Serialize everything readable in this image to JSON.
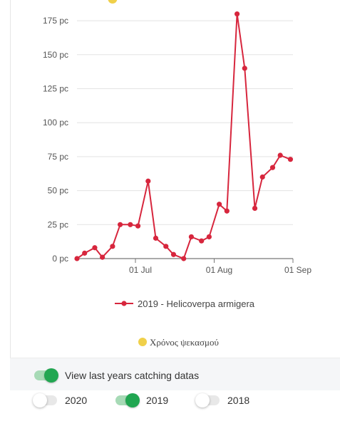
{
  "chart_data": {
    "type": "line",
    "title": "",
    "xlabel": "",
    "ylabel": "",
    "unit_suffix": " pc",
    "ylim": [
      0,
      185
    ],
    "yticks": [
      0,
      25,
      50,
      75,
      100,
      125,
      150,
      175
    ],
    "xlim": [
      "2019-06-08",
      "2019-09-01"
    ],
    "xticks": [
      {
        "date": "2019-07-01",
        "label": "01 Jul"
      },
      {
        "date": "2019-08-01",
        "label": "01 Aug"
      },
      {
        "date": "2019-09-01",
        "label": "01 Sep"
      }
    ],
    "grid": true,
    "series": [
      {
        "name": "2019 - Helicoverpa armigera",
        "color": "#d7263d",
        "points": [
          {
            "x": "2019-06-08",
            "y": 0
          },
          {
            "x": "2019-06-11",
            "y": 4
          },
          {
            "x": "2019-06-15",
            "y": 8
          },
          {
            "x": "2019-06-18",
            "y": 1
          },
          {
            "x": "2019-06-22",
            "y": 9
          },
          {
            "x": "2019-06-25",
            "y": 25
          },
          {
            "x": "2019-06-29",
            "y": 25
          },
          {
            "x": "2019-07-02",
            "y": 24
          },
          {
            "x": "2019-07-06",
            "y": 57
          },
          {
            "x": "2019-07-09",
            "y": 15
          },
          {
            "x": "2019-07-13",
            "y": 9
          },
          {
            "x": "2019-07-16",
            "y": 3
          },
          {
            "x": "2019-07-20",
            "y": 0
          },
          {
            "x": "2019-07-23",
            "y": 16
          },
          {
            "x": "2019-07-27",
            "y": 13
          },
          {
            "x": "2019-07-30",
            "y": 16
          },
          {
            "x": "2019-08-03",
            "y": 40
          },
          {
            "x": "2019-08-06",
            "y": 35
          },
          {
            "x": "2019-08-10",
            "y": 180
          },
          {
            "x": "2019-08-13",
            "y": 140
          },
          {
            "x": "2019-08-17",
            "y": 37
          },
          {
            "x": "2019-08-20",
            "y": 60
          },
          {
            "x": "2019-08-24",
            "y": 67
          },
          {
            "x": "2019-08-27",
            "y": 76
          },
          {
            "x": "2019-08-31",
            "y": 73
          }
        ]
      }
    ],
    "markers": [
      {
        "name": "Χρόνος ψεκασμού",
        "color": "#f0d04a",
        "x": "2019-06-22",
        "y": 191
      }
    ],
    "legend": "bottom"
  },
  "controls": {
    "last_years_label": "View last years catching datas",
    "last_years_on": true,
    "years": [
      {
        "label": "2020",
        "on": false
      },
      {
        "label": "2019",
        "on": true
      },
      {
        "label": "2018",
        "on": false
      }
    ]
  }
}
